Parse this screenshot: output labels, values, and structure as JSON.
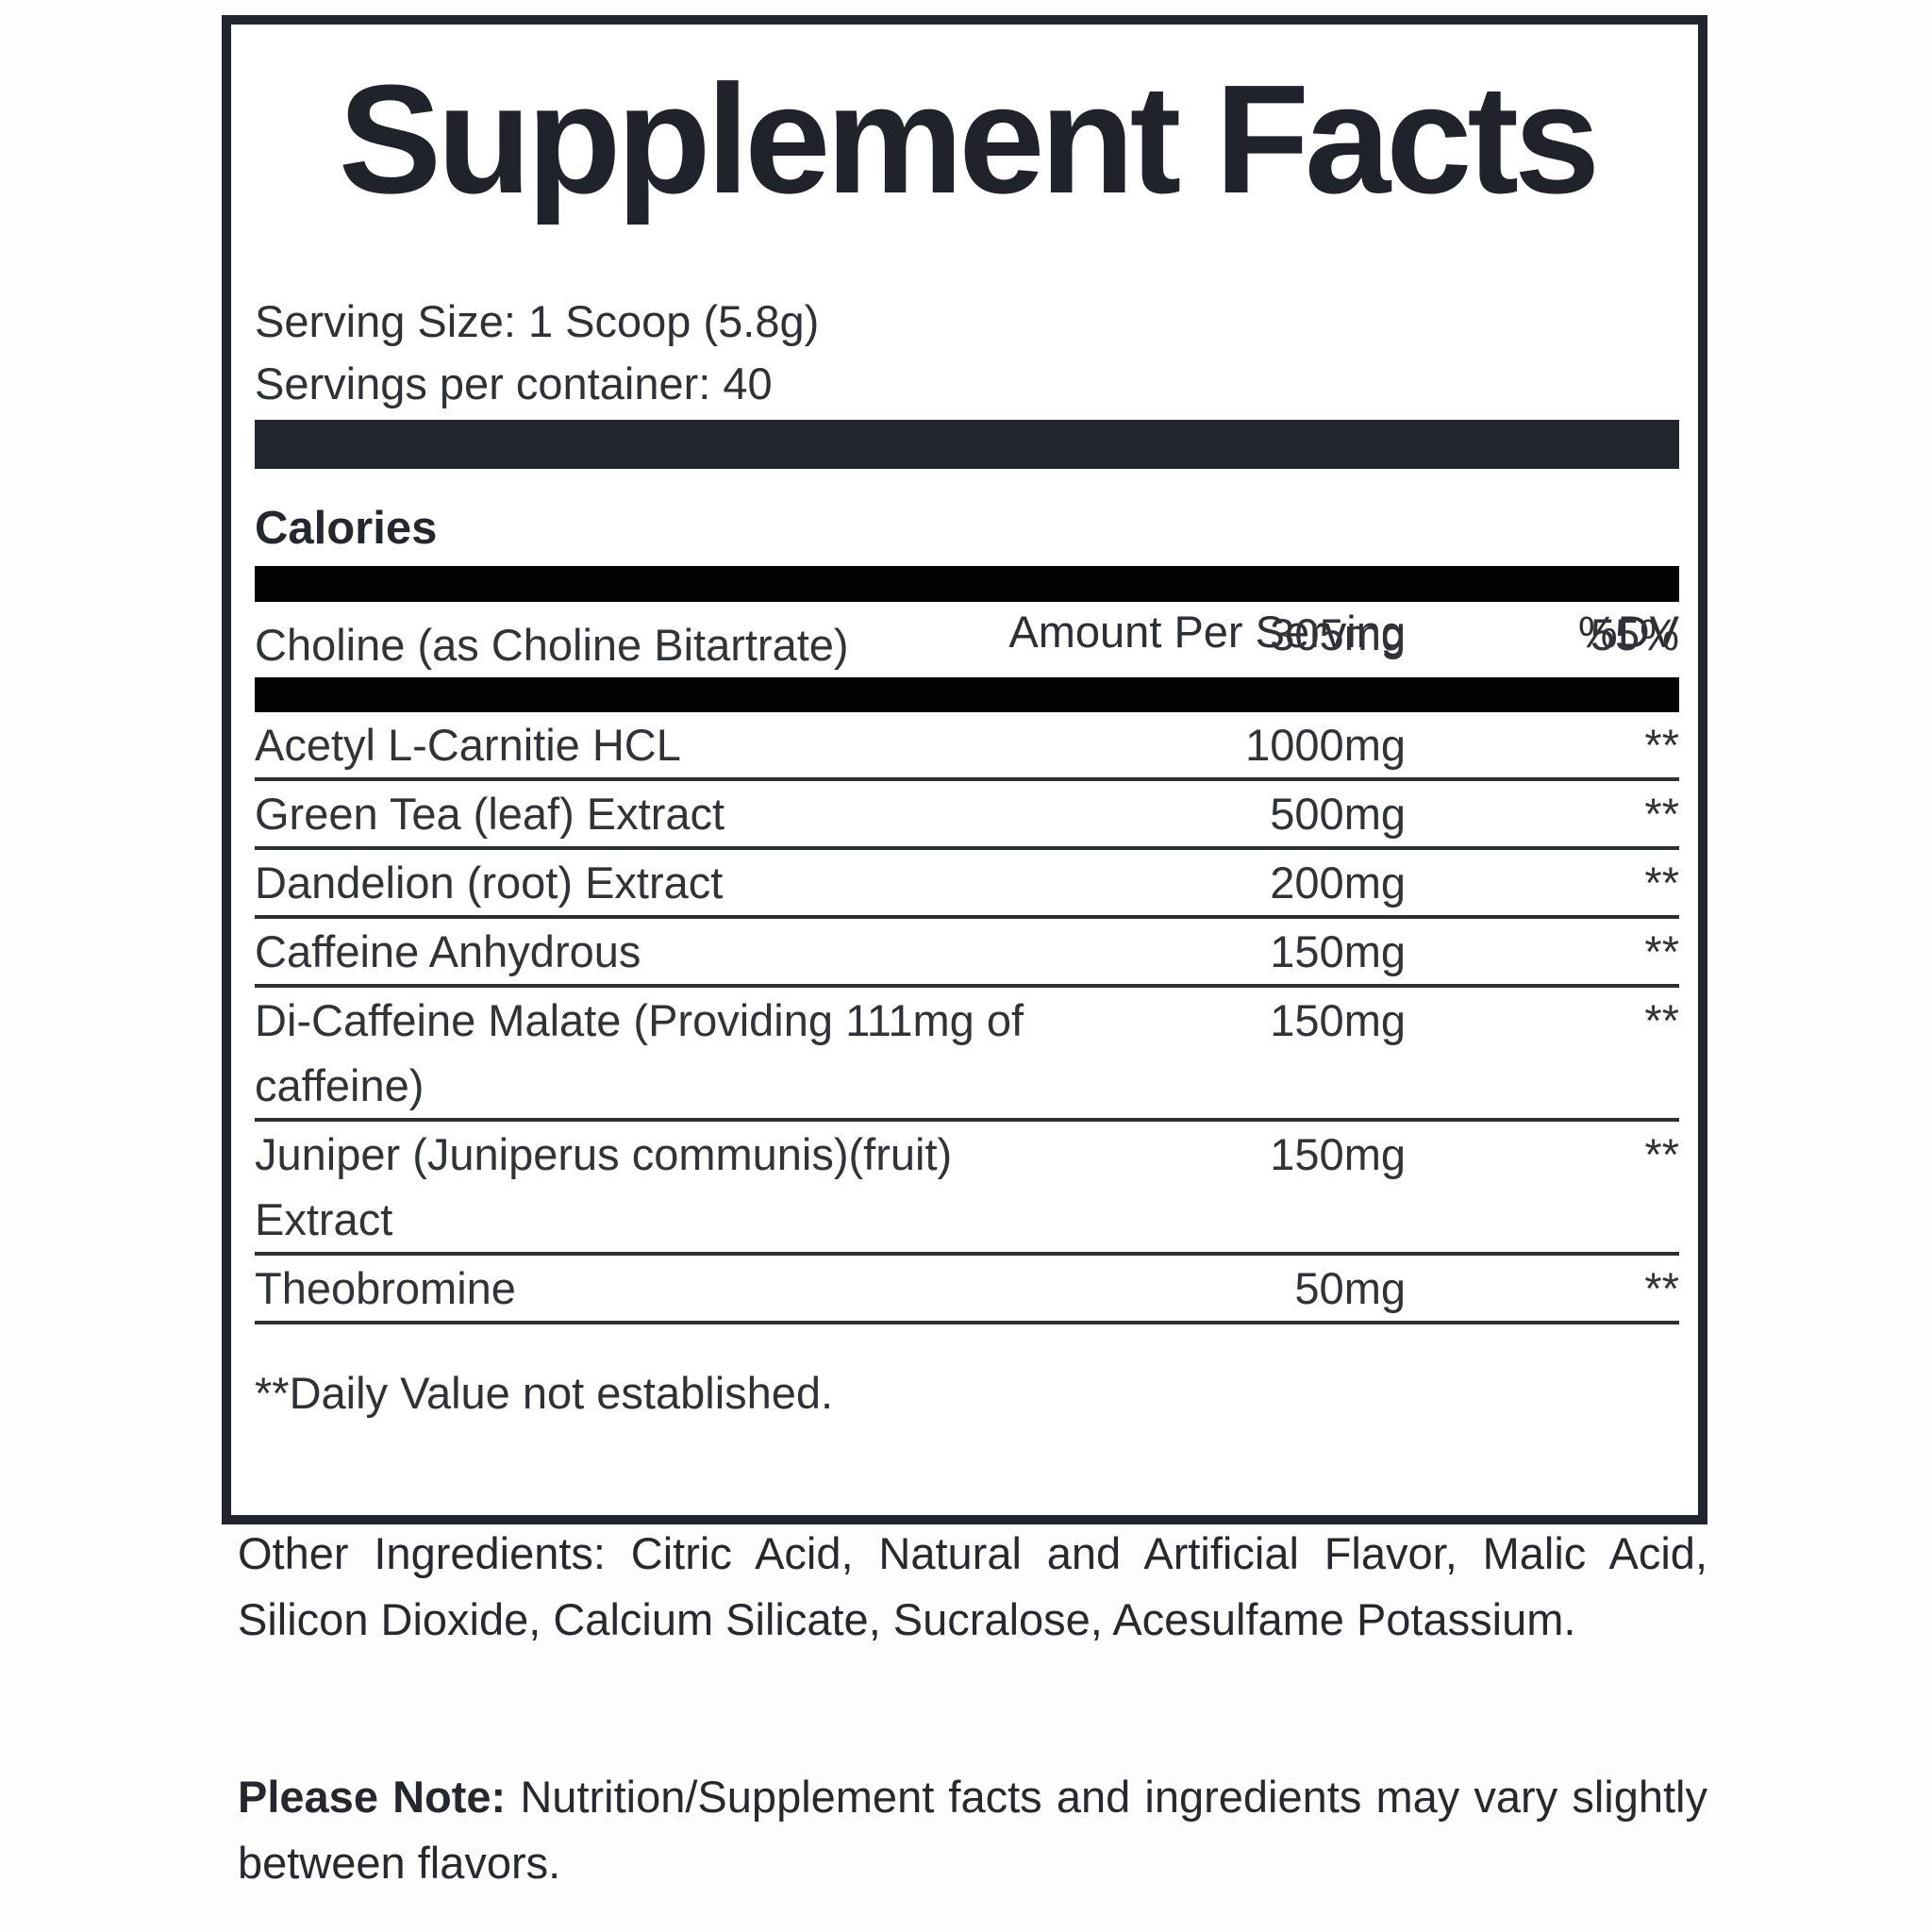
{
  "label": {
    "title": "Supplement Facts",
    "serving_size_line": "Serving Size: 1 Scoop (5.8g)",
    "servings_per_container_line": "Servings per container: 40",
    "calories_label": "Calories",
    "columns": {
      "amount_header": "Amount Per Serving",
      "dv_header": "%DV"
    },
    "main_row": {
      "name": "Choline (as Choline Bitartrate)",
      "amount": "305mg",
      "dv": "55%"
    },
    "ingredient_rows": [
      {
        "name": "Acetyl L-Carnitie HCL",
        "amount": "1000mg",
        "dv": "**"
      },
      {
        "name": "Green Tea (leaf) Extract",
        "amount": "500mg",
        "dv": "**"
      },
      {
        "name": "Dandelion (root) Extract",
        "amount": "200mg",
        "dv": "**"
      },
      {
        "name": "Caffeine Anhydrous",
        "amount": "150mg",
        "dv": "**"
      },
      {
        "name": "Di-Caffeine Malate (Providing 111mg of\ncaffeine)",
        "amount": "150mg",
        "dv": "**"
      },
      {
        "name": "Juniper (Juniperus communis)(fruit)\nExtract",
        "amount": "150mg",
        "dv": "**"
      },
      {
        "name": "Theobromine",
        "amount": "50mg",
        "dv": "**"
      }
    ],
    "footnote": "**Daily Value not established.",
    "colors": {
      "panel_border": "#22252d",
      "thick_bar_dark": "#22262e",
      "thick_bar_black": "#030304",
      "row_line": "#2c2f35",
      "title_text": "#20232b",
      "body_text": "#303338"
    }
  },
  "below": {
    "other_ingredients": "Other Ingredients: Citric Acid, Natural and Artificial Flavor, Malic Acid, Silicon Dioxide, Calcium Silicate, Sucralose, Acesulfame Potassium.",
    "please_note_label": "Please Note:",
    "please_note_text": " Nutrition/Supplement facts and ingredients may vary slightly between flavors."
  }
}
